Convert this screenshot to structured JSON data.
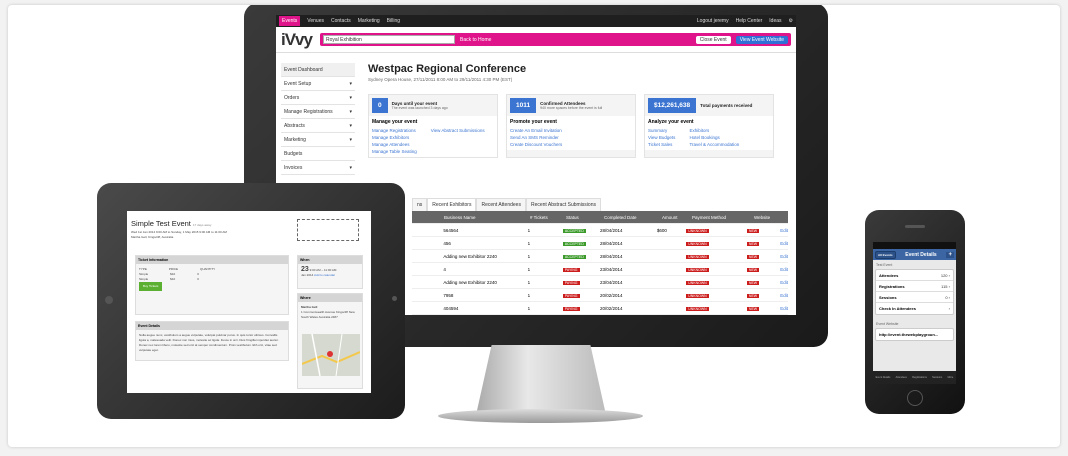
{
  "monitor": {
    "topnav": {
      "items": [
        "Events",
        "Venues",
        "Contacts",
        "Marketing",
        "Billing"
      ],
      "right": [
        "Logout jeremy",
        "Help Center",
        "Ideas"
      ]
    },
    "logo": "iVvy",
    "event_select": "Royal Exhibition",
    "back_link": "Back to Home",
    "close_event": "Close Event",
    "view_site": "View Event Website",
    "sidebar": [
      "Event Dashboard",
      "Event Setup",
      "Orders",
      "Manage Registrations",
      "Abstracts",
      "Marketing",
      "Budgets",
      "Invoices"
    ],
    "title": "Westpac Regional Conference",
    "subtitle": "Sydney Opera House, 27/11/2011 8:00 AM to 29/11/2011 4:30 PM (EST)",
    "cards": [
      {
        "num": "0",
        "title": "Days until your event",
        "note": "The event was launched 3 days ago",
        "head": "Manage your event",
        "col1": [
          "Manage Registrations",
          "Manage Exhibitors",
          "Manage Attendees",
          "Manage Table Seating"
        ],
        "col2": [
          "View Abstract Submissions"
        ]
      },
      {
        "num": "1011",
        "title": "Confirmed Attendees",
        "note": "940 more spaces before the event is full",
        "head": "Promote your event",
        "col1": [
          "Create An Email Invitation",
          "Send An SMS Reminder",
          "Create Discount Vouchers"
        ],
        "col2": []
      },
      {
        "num": "$12,261,638",
        "title": "Total payments received",
        "note": "",
        "head": "Analyze your event",
        "col1": [
          "Summary",
          "View Budgets",
          "Ticket Sales"
        ],
        "col2": [
          "Exhibitors",
          "Hotel Bookings",
          "Travel & Accommodation"
        ]
      }
    ],
    "tabs": [
      "ns",
      "Recent Exhibitors",
      "Recent Attendees",
      "Recent Abstract Submissions"
    ],
    "columns": [
      "",
      "Business Name",
      "# Tickets",
      "Status",
      "Completed Date",
      "Amount",
      "Payment Method",
      "Website",
      ""
    ],
    "rows": [
      {
        "name": "564564",
        "tickets": "1",
        "status": "ACCEPTED",
        "date": "28/04/2014",
        "amount": "$600",
        "pay": "UNKNOWN",
        "web": "NEW",
        "edit": "Edit"
      },
      {
        "name": "456",
        "tickets": "1",
        "status": "ACCEPTED",
        "date": "28/04/2014",
        "amount": "",
        "pay": "UNKNOWN",
        "web": "NEW",
        "edit": "Edit"
      },
      {
        "name": "Adding new Exhibitor 2240",
        "tickets": "1",
        "status": "ACCEPTED",
        "date": "28/04/2014",
        "amount": "",
        "pay": "UNKNOWN",
        "web": "NEW",
        "edit": "Edit"
      },
      {
        "name": "4",
        "tickets": "1",
        "status": "PAYING",
        "date": "23/04/2014",
        "amount": "",
        "pay": "UNKNOWN",
        "web": "NEW",
        "edit": "Edit"
      },
      {
        "name": "Adding new Exhibitor 2240",
        "tickets": "1",
        "status": "PAYING",
        "date": "23/04/2014",
        "amount": "",
        "pay": "UNKNOWN",
        "web": "NEW",
        "edit": "Edit"
      },
      {
        "name": "7958",
        "tickets": "1",
        "status": "PAYING",
        "date": "20/02/2014",
        "amount": "",
        "pay": "UNKNOWN",
        "web": "NEW",
        "edit": "Edit"
      },
      {
        "name": "404594",
        "tickets": "1",
        "status": "PAYING",
        "date": "20/02/2014",
        "amount": "",
        "pay": "UNKNOWN",
        "web": "NEW",
        "edit": "Edit"
      }
    ]
  },
  "tablet": {
    "title": "Simple Test Event",
    "title_note": "17 days away",
    "sub1": "Wed 1st Jan 2014 9:00 AM to Sunday, 1 May 2015 9:00 AM to 11:00 AM",
    "sub2": "Martha Gell, Kingscliff, Australia",
    "ticket_head": "Ticket Information",
    "ticket_cols": [
      "TYPE",
      "PRICE",
      "QUANTITY"
    ],
    "tickets": [
      [
        "Simple",
        "$10",
        "0"
      ],
      [
        "Simple",
        "$10",
        "0"
      ]
    ],
    "buy": "Buy Tickets",
    "details_head": "Event Details",
    "details_text": "Nulla augue nunc, vestibulum a augue vulputate, volutpat pulvinar purus. In quis tortor ultrices. Convallis ligula a, malesuada velit. Donec non risus, molestie ac ligula. Fusce in orci. Duis fringilla imperdiet auctor. Donec nec lorem libero, molestie sed orci at semper condimentum. Proin vestibulum nibh orci, vitae sed vulputate eget.",
    "when_head": "When",
    "when_day": "23",
    "when_mon": "Jan 2014",
    "when_time": "9:00 AM – 11:00 AM",
    "when_cal": "Add to calendar",
    "where_head": "Where",
    "where_name": "Martha Gell",
    "where_addr": "1 Commonwealth Avenue Kingscliff New South Wales Australia 2487"
  },
  "phone": {
    "back": "All Events",
    "title": "Event Details",
    "label1": "Test Event",
    "rows": [
      [
        "Attendees",
        "120"
      ],
      [
        "Registrations",
        "115"
      ],
      [
        "Sessions",
        "0"
      ],
      [
        "Check In Attendees",
        ""
      ]
    ],
    "label2": "Event Website",
    "url": "http://event.thewebplaygroun...",
    "tabbar": [
      "Event Details",
      "Attendees",
      "Registrations",
      "Sessions",
      "More"
    ]
  }
}
